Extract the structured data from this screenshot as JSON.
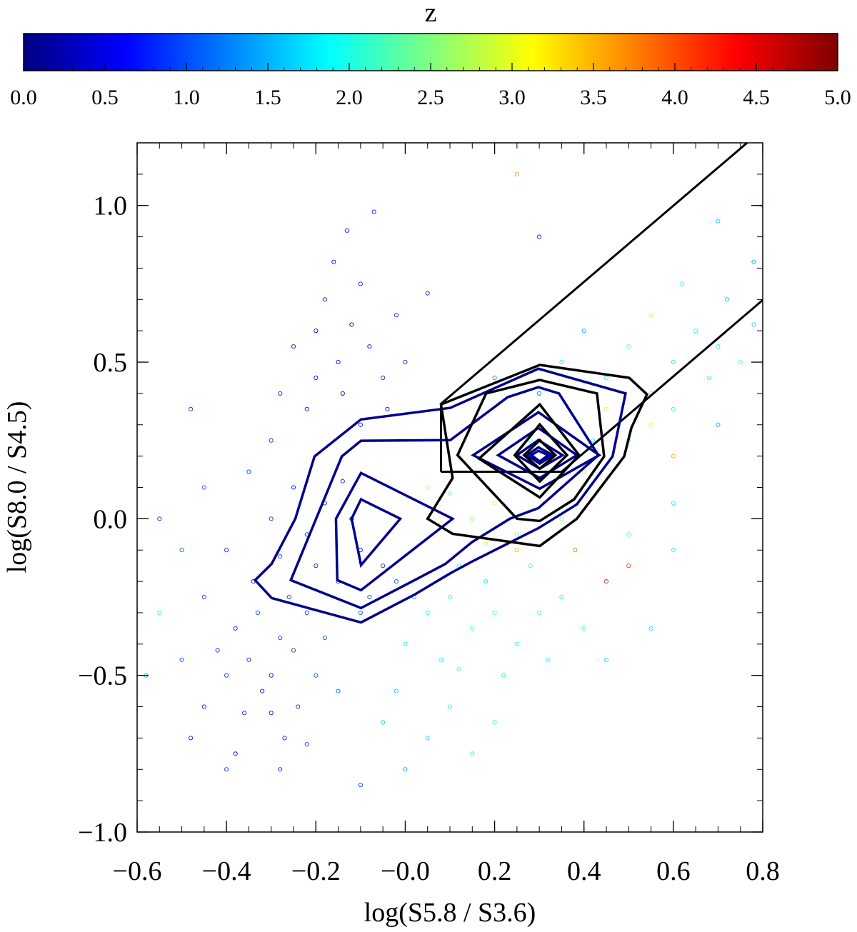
{
  "chart_data": {
    "type": "scatter",
    "xlabel": "log(S5.8 / S3.6)",
    "ylabel": "log(S8.0 / S4.5)",
    "xlim": [
      -0.6,
      0.8
    ],
    "ylim": [
      -1.0,
      1.2
    ],
    "xticks": [
      -0.6,
      -0.4,
      -0.2,
      0.0,
      0.2,
      0.4,
      0.6,
      0.8
    ],
    "xtick_labels": [
      "−0.6",
      "−0.4",
      "−0.2",
      "−0.0",
      "0.2",
      "0.4",
      "0.6",
      "0.8"
    ],
    "yticks": [
      -1.0,
      -0.5,
      0.0,
      0.5,
      1.0
    ],
    "ytick_labels": [
      "−1.0",
      "−0.5",
      "0.0",
      "0.5",
      "1.0"
    ],
    "grid": false,
    "colorbar": {
      "title": "z",
      "range": [
        0,
        5
      ],
      "colormap": "jet",
      "placement": "top",
      "ticks": [
        0,
        0.5,
        1,
        1.5,
        2,
        2.5,
        3,
        3.5,
        4,
        4.5,
        5
      ],
      "tick_labels": [
        "0.0",
        "0.5",
        "1.0",
        "1.5",
        "2.0",
        "2.5",
        "3.0",
        "3.5",
        "4.0",
        "4.5",
        "5.0"
      ]
    },
    "points_xyz": [
      [
        -0.35,
        -0.45,
        0.8
      ],
      [
        -0.3,
        -0.5,
        0.7
      ],
      [
        -0.28,
        -0.38,
        0.9
      ],
      [
        -0.32,
        -0.55,
        0.6
      ],
      [
        -0.25,
        -0.42,
        1.0
      ],
      [
        -0.38,
        -0.35,
        0.8
      ],
      [
        -0.22,
        -0.3,
        0.9
      ],
      [
        -0.3,
        -0.62,
        0.7
      ],
      [
        -0.27,
        -0.7,
        0.8
      ],
      [
        -0.4,
        -0.5,
        0.9
      ],
      [
        -0.36,
        -0.62,
        0.7
      ],
      [
        -0.2,
        -0.5,
        1.1
      ],
      [
        -0.18,
        -0.38,
        1.0
      ],
      [
        -0.24,
        -0.6,
        0.8
      ],
      [
        -0.33,
        -0.3,
        1.0
      ],
      [
        -0.42,
        -0.42,
        0.9
      ],
      [
        -0.45,
        -0.6,
        0.7
      ],
      [
        -0.28,
        -0.8,
        0.8
      ],
      [
        -0.22,
        -0.72,
        0.9
      ],
      [
        -0.15,
        -0.55,
        1.2
      ],
      [
        -0.5,
        -0.45,
        1.0
      ],
      [
        -0.48,
        -0.7,
        0.8
      ],
      [
        -0.38,
        -0.75,
        0.7
      ],
      [
        -0.26,
        -0.25,
        0.9
      ],
      [
        -0.34,
        -0.2,
        0.8
      ],
      [
        -0.2,
        -0.15,
        0.9
      ],
      [
        -0.15,
        -0.2,
        0.8
      ],
      [
        -0.1,
        -0.1,
        0.7
      ],
      [
        -0.12,
        0,
        0.6
      ],
      [
        -0.18,
        0.05,
        0.8
      ],
      [
        -0.22,
        -0.05,
        0.9
      ],
      [
        -0.08,
        -0.25,
        1.0
      ],
      [
        -0.05,
        -0.15,
        0.9
      ],
      [
        -0.25,
        0.1,
        0.7
      ],
      [
        -0.14,
        0.12,
        0.8
      ],
      [
        -0.3,
        0,
        0.9
      ],
      [
        -0.28,
        -0.12,
        1.0
      ],
      [
        -0.4,
        -0.1,
        0.8
      ],
      [
        -0.45,
        -0.25,
        0.9
      ],
      [
        -0.1,
        -0.3,
        1.1
      ],
      [
        -0.02,
        -0.2,
        1.2
      ],
      [
        -0.15,
        0.5,
        0.6
      ],
      [
        -0.12,
        0.62,
        0.5
      ],
      [
        -0.18,
        0.7,
        0.6
      ],
      [
        -0.1,
        0.75,
        0.7
      ],
      [
        -0.2,
        0.45,
        0.6
      ],
      [
        -0.08,
        0.55,
        0.7
      ],
      [
        -0.14,
        0.4,
        0.5
      ],
      [
        -0.22,
        0.35,
        0.7
      ],
      [
        -0.05,
        0.45,
        0.8
      ],
      [
        -0.16,
        0.82,
        0.6
      ],
      [
        -0.25,
        0.55,
        0.7
      ],
      [
        -0.1,
        0.3,
        0.6
      ],
      [
        -0.02,
        0.65,
        0.8
      ],
      [
        -0.28,
        0.4,
        0.9
      ],
      [
        -0.04,
        0.35,
        0.7
      ],
      [
        -0.2,
        0.6,
        0.5
      ],
      [
        -0.13,
        0.92,
        0.6
      ],
      [
        -0.3,
        0.25,
        0.8
      ],
      [
        0.05,
        0.72,
        0.8
      ],
      [
        -0.35,
        0.15,
        0.9
      ],
      [
        -0.07,
        0.98,
        0.7
      ],
      [
        0.0,
        0.5,
        0.8
      ],
      [
        0.05,
        -0.3,
        1.9
      ],
      [
        0.1,
        -0.25,
        2.0
      ],
      [
        0.15,
        -0.35,
        2.1
      ],
      [
        0.0,
        -0.4,
        1.8
      ],
      [
        0.08,
        -0.45,
        1.9
      ],
      [
        0.2,
        -0.3,
        2.2
      ],
      [
        0.12,
        -0.15,
        2.0
      ],
      [
        0.18,
        -0.2,
        1.8
      ],
      [
        -0.02,
        -0.55,
        1.7
      ],
      [
        0.1,
        -0.6,
        1.9
      ],
      [
        0.05,
        -0.7,
        1.8
      ],
      [
        0.25,
        -0.4,
        2.0
      ],
      [
        0.3,
        -0.3,
        2.1
      ],
      [
        0.22,
        -0.5,
        1.9
      ],
      [
        0.15,
        -0.75,
        2.0
      ],
      [
        -0.05,
        -0.65,
        1.6
      ],
      [
        0.28,
        -0.15,
        2.3
      ],
      [
        0.35,
        -0.25,
        2.0
      ],
      [
        0.02,
        -0.25,
        1.5
      ],
      [
        0.12,
        -0.48,
        2.2
      ],
      [
        0.32,
        -0.45,
        1.9
      ],
      [
        0.4,
        -0.35,
        2.1
      ],
      [
        0.15,
        0.0,
        2.6
      ],
      [
        0.2,
        0.05,
        2.8
      ],
      [
        0.1,
        0.08,
        2.5
      ],
      [
        0.25,
        -0.05,
        2.4
      ],
      [
        0.18,
        -0.08,
        2.9
      ],
      [
        0.3,
        0.1,
        2.7
      ],
      [
        0.22,
        0.15,
        3.0
      ],
      [
        0.35,
        0.0,
        2.5
      ],
      [
        0.12,
        0.2,
        2.4
      ],
      [
        0.05,
        0.1,
        2.6
      ],
      [
        0.28,
        0.25,
        2.2
      ],
      [
        0.4,
        0.15,
        2.8
      ],
      [
        0.45,
        -0.2,
        4.2
      ],
      [
        0.5,
        -0.15,
        4.0
      ],
      [
        0.38,
        -0.1,
        3.8
      ],
      [
        0.25,
        -0.1,
        3.5
      ],
      [
        0.6,
        0.2,
        3.5
      ],
      [
        0.55,
        0.3,
        3.0
      ],
      [
        0.25,
        1.1,
        3.6
      ],
      [
        0.45,
        0.45,
        2.0
      ],
      [
        0.5,
        0.55,
        2.3
      ],
      [
        0.6,
        0.5,
        1.8
      ],
      [
        0.65,
        0.6,
        2.0
      ],
      [
        0.55,
        0.4,
        2.5
      ],
      [
        0.7,
        0.55,
        1.9
      ],
      [
        0.72,
        0.7,
        1.6
      ],
      [
        0.62,
        0.75,
        2.0
      ],
      [
        0.4,
        0.6,
        1.5
      ],
      [
        0.35,
        0.5,
        1.8
      ],
      [
        0.75,
        0.5,
        2.2
      ],
      [
        0.55,
        0.65,
        2.8
      ],
      [
        0.45,
        0.35,
        3.0
      ],
      [
        0.68,
        0.45,
        2.1
      ],
      [
        0.78,
        0.62,
        1.7
      ],
      [
        0.5,
        0.25,
        2.4
      ],
      [
        0.6,
        0.35,
        2.0
      ],
      [
        0.42,
        0.25,
        1.9
      ],
      [
        0.78,
        0.82,
        1.5
      ],
      [
        0.7,
        0.95,
        1.7
      ],
      [
        0.2,
        0.45,
        1.3
      ],
      [
        0.3,
        0.4,
        1.2
      ],
      [
        0.3,
        0.9,
        0.8
      ],
      [
        0.8,
        1.0,
        1.6
      ],
      [
        -0.55,
        -0.3,
        1.8
      ],
      [
        -0.5,
        -0.1,
        1.2
      ],
      [
        -0.58,
        -0.5,
        1.6
      ],
      [
        -0.45,
        0.1,
        1.0
      ],
      [
        -0.48,
        0.35,
        0.9
      ],
      [
        -0.55,
        0.0,
        0.8
      ],
      [
        0.55,
        -0.35,
        1.8
      ],
      [
        0.5,
        -0.05,
        2.2
      ],
      [
        0.6,
        -0.1,
        2.0
      ],
      [
        0.45,
        -0.45,
        1.8
      ],
      [
        0.7,
        0.3,
        1.5
      ],
      [
        0.6,
        0.05,
        1.9
      ],
      [
        -0.1,
        -0.85,
        0.9
      ],
      [
        0.0,
        -0.8,
        1.4
      ],
      [
        0.2,
        -0.65,
        2.0
      ],
      [
        -0.4,
        -0.8,
        0.9
      ]
    ],
    "wedge_lines": {
      "color": "#000000",
      "segments": [
        [
          [
            0.08,
            0.367
          ],
          [
            0.765,
            1.2
          ]
        ],
        [
          [
            0.08,
            0.367
          ],
          [
            0.08,
            0.15
          ]
        ],
        [
          [
            0.08,
            0.15
          ],
          [
            0.35,
            0.15
          ]
        ],
        [
          [
            0.35,
            0.15
          ],
          [
            0.8,
            0.698
          ]
        ]
      ]
    },
    "contours": [
      {
        "color": "#00008b",
        "points": [
          [
            -0.336,
            -0.196
          ],
          [
            -0.299,
            -0.253
          ],
          [
            -0.099,
            -0.331
          ],
          [
            0.021,
            -0.242
          ],
          [
            0.101,
            -0.174
          ],
          [
            0.149,
            -0.137
          ],
          [
            0.298,
            -0.03
          ],
          [
            0.384,
            0.046
          ],
          [
            0.464,
            0.199
          ],
          [
            0.493,
            0.4
          ],
          [
            0.298,
            0.479
          ],
          [
            0.101,
            0.354
          ],
          [
            -0.099,
            0.317
          ],
          [
            -0.203,
            0.199
          ],
          [
            -0.246,
            0.0
          ],
          [
            -0.299,
            -0.144
          ]
        ]
      },
      {
        "color": "#00008b",
        "points": [
          [
            -0.256,
            -0.196
          ],
          [
            -0.099,
            -0.285
          ],
          [
            0.021,
            -0.196
          ],
          [
            0.09,
            -0.144
          ],
          [
            0.149,
            -0.075
          ],
          [
            0.234,
            0.0
          ],
          [
            0.298,
            0.034
          ],
          [
            0.432,
            0.203
          ],
          [
            0.344,
            0.4
          ],
          [
            0.298,
            0.42
          ],
          [
            0.229,
            0.388
          ],
          [
            0.101,
            0.251
          ],
          [
            -0.099,
            0.249
          ],
          [
            -0.142,
            0.199
          ]
        ]
      },
      {
        "color": "#00008b",
        "points": [
          [
            -0.099,
            0.146
          ],
          [
            0.106,
            0.0
          ],
          [
            -0.099,
            -0.228
          ],
          [
            -0.152,
            -0.196
          ],
          [
            -0.155,
            0.0
          ]
        ]
      },
      {
        "color": "#00008b",
        "points": [
          [
            -0.099,
            0.062
          ],
          [
            -0.011,
            0.0
          ],
          [
            -0.099,
            -0.148
          ],
          [
            -0.12,
            0.0
          ]
        ]
      },
      {
        "color": "#00008b",
        "points": [
          [
            0.152,
            0.203
          ],
          [
            0.298,
            0.34
          ],
          [
            0.434,
            0.203
          ],
          [
            0.301,
            0.096
          ]
        ]
      },
      {
        "color": "#00008b",
        "points": [
          [
            0.208,
            0.203
          ],
          [
            0.298,
            0.29
          ],
          [
            0.384,
            0.203
          ],
          [
            0.301,
            0.13
          ]
        ]
      },
      {
        "color": "#00008b",
        "points": [
          [
            0.25,
            0.203
          ],
          [
            0.298,
            0.251
          ],
          [
            0.352,
            0.203
          ],
          [
            0.301,
            0.16
          ]
        ]
      },
      {
        "color": "#00008b",
        "points": [
          [
            0.272,
            0.203
          ],
          [
            0.298,
            0.228
          ],
          [
            0.33,
            0.203
          ],
          [
            0.301,
            0.176
          ]
        ]
      },
      {
        "color": "#00008b",
        "points": [
          [
            0.282,
            0.203
          ],
          [
            0.298,
            0.217
          ],
          [
            0.32,
            0.203
          ],
          [
            0.301,
            0.183
          ]
        ]
      },
      {
        "color": "#000000",
        "points": [
          [
            0.05,
            0.0
          ],
          [
            0.106,
            -0.048
          ],
          [
            0.301,
            -0.087
          ],
          [
            0.384,
            0.0
          ],
          [
            0.49,
            0.199
          ],
          [
            0.506,
            0.29
          ],
          [
            0.541,
            0.397
          ],
          [
            0.501,
            0.45
          ],
          [
            0.301,
            0.491
          ],
          [
            0.08,
            0.365
          ],
          [
            0.106,
            0.13
          ]
        ]
      },
      {
        "color": "#000000",
        "points": [
          [
            0.181,
            0.4
          ],
          [
            0.301,
            0.443
          ],
          [
            0.429,
            0.4
          ],
          [
            0.445,
            0.199
          ],
          [
            0.378,
            0.062
          ],
          [
            0.301,
            -0.007
          ],
          [
            0.25,
            0.0
          ],
          [
            0.117,
            0.203
          ]
        ]
      },
      {
        "color": "#000000",
        "points": [
          [
            0.301,
            0.365
          ],
          [
            0.389,
            0.203
          ],
          [
            0.301,
            0.068
          ],
          [
            0.165,
            0.192
          ]
        ]
      },
      {
        "color": "#000000",
        "points": [
          [
            0.301,
            0.301
          ],
          [
            0.362,
            0.203
          ],
          [
            0.301,
            0.119
          ],
          [
            0.245,
            0.203
          ]
        ]
      },
      {
        "color": "#000000",
        "points": [
          [
            0.301,
            0.251
          ],
          [
            0.336,
            0.203
          ],
          [
            0.301,
            0.16
          ],
          [
            0.266,
            0.203
          ]
        ]
      }
    ]
  }
}
